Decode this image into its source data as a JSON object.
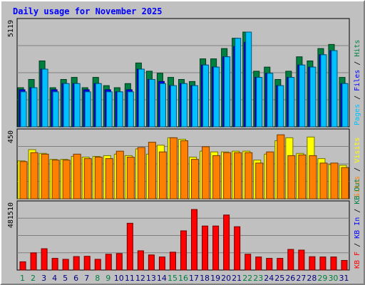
{
  "chart_data": {
    "type": "bar",
    "title": "Daily usage for November 2025",
    "categories": [
      "1",
      "2",
      "3",
      "4",
      "5",
      "6",
      "7",
      "8",
      "9",
      "10",
      "11",
      "12",
      "13",
      "14",
      "15",
      "16",
      "17",
      "18",
      "19",
      "20",
      "21",
      "22",
      "23",
      "24",
      "25",
      "26",
      "27",
      "28",
      "29",
      "30",
      "31"
    ],
    "weekend_days": [
      "1",
      "2",
      "8",
      "9",
      "15",
      "16",
      "22",
      "23",
      "29",
      "30"
    ],
    "colors": {
      "hits": "#008040",
      "files": "#0000ff",
      "pages": "#00c0ff",
      "visits": "#ffff00",
      "sites": "#ff8000",
      "kbytes": "#ff0000",
      "kb_in": "#0000ff",
      "kb_out": "#008040",
      "weekend_tick": "#008040",
      "weekday_tick": "#000080",
      "background": "#c0c0c0",
      "title": "#0000ff"
    },
    "panels": [
      {
        "id": "requests",
        "ymax_label": "5119",
        "ylim": [
          0,
          5119
        ],
        "series_labels": [
          {
            "text": "Pages",
            "color": "#00c0ff"
          },
          {
            "text": "Files",
            "color": "#0000ff"
          },
          {
            "text": "Hits",
            "color": "#008040"
          }
        ],
        "series": [
          {
            "name": "Hits",
            "values": [
              1900,
              2300,
              3200,
              1900,
              2300,
              2400,
              1900,
              2400,
              2000,
              1900,
              2100,
              3100,
              2700,
              2600,
              2400,
              2300,
              2200,
              3300,
              3300,
              3800,
              4300,
              4600,
              2700,
              2900,
              2300,
              2700,
              3400,
              3200,
              3800,
              4000,
              2400
            ]
          },
          {
            "name": "Files",
            "values": [
              1800,
              1900,
              2800,
              1800,
              2100,
              2100,
              1800,
              2100,
              1800,
              1700,
              1800,
              2800,
              2300,
              2200,
              2000,
              2100,
              2000,
              3000,
              2900,
              3400,
              3900,
              4100,
              2400,
              2600,
              2000,
              2400,
              3000,
              2900,
              3500,
              3700,
              2100
            ]
          },
          {
            "name": "Pages",
            "values": [
              1700,
              1900,
              2800,
              1700,
              2100,
              2100,
              1700,
              2100,
              1700,
              1700,
              1700,
              2800,
              2300,
              2100,
              2000,
              2100,
              2000,
              3000,
              2900,
              3400,
              4300,
              4600,
              2400,
              2600,
              2000,
              2400,
              3000,
              2900,
              3500,
              3700,
              2100
            ]
          }
        ],
        "bar_order": [
          "Hits",
          "Files",
          "Pages"
        ]
      },
      {
        "id": "visits",
        "ymax_label": "450",
        "ylim": [
          0,
          450
        ],
        "series_labels": [
          {
            "text": "Sites",
            "color": "#ff8000"
          },
          {
            "text": "Visits",
            "color": "#ffff00"
          }
        ],
        "series": [
          {
            "name": "Visits",
            "values": [
              255,
              330,
              305,
              265,
              265,
              285,
              280,
              285,
              290,
              300,
              290,
              335,
              300,
              360,
              410,
              400,
              280,
              320,
              315,
              315,
              320,
              320,
              260,
              300,
              390,
              410,
              305,
              415,
              270,
              230,
              225
            ]
          },
          {
            "name": "Sites",
            "values": [
              250,
              310,
              300,
              260,
              260,
              300,
              270,
              280,
              270,
              320,
              280,
              345,
              380,
              315,
              410,
              390,
              265,
              350,
              290,
              310,
              310,
              310,
              240,
              315,
              430,
              290,
              295,
              290,
              240,
              240,
              210
            ]
          }
        ],
        "bar_order": [
          "Visits",
          "Sites"
        ]
      },
      {
        "id": "kbytes",
        "ymax_label": "481510",
        "ylim": [
          0,
          481510
        ],
        "series_labels": [
          {
            "text": "KB F",
            "color": "#ff0000"
          },
          {
            "text": "KB In",
            "color": "#0000ff"
          },
          {
            "text": "KB Out",
            "color": "#008040"
          }
        ],
        "series": [
          {
            "name": "KB F",
            "values": [
              60000,
              125000,
              155000,
              85000,
              78000,
              98000,
              100000,
              78000,
              115000,
              120000,
              340000,
              140000,
              110000,
              95000,
              130000,
              285000,
              440000,
              320000,
              320000,
              400000,
              315000,
              115000,
              95000,
              85000,
              85000,
              150000,
              145000,
              97000,
              95000,
              95000,
              70000
            ]
          }
        ],
        "bar_order": [
          "KB F"
        ]
      }
    ]
  }
}
